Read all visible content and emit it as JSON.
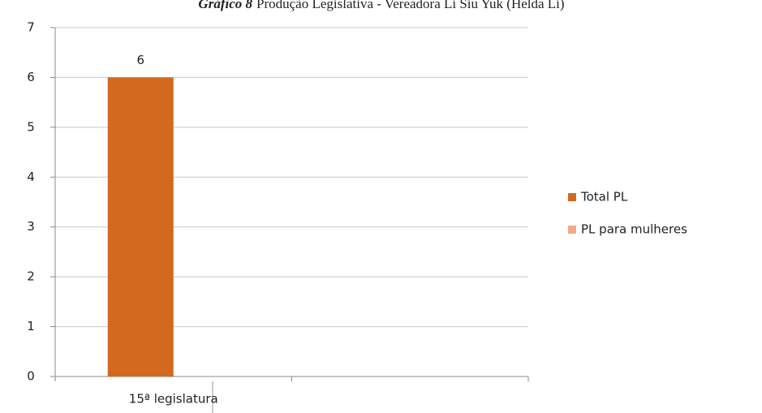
{
  "chart_data": {
    "type": "bar",
    "figure_label": "Gráfico 8",
    "title": "Produção Legislativa - Vereadora Li Siu Yuk (Helda Li)",
    "categories": [
      "15ª legislatura",
      null
    ],
    "series": [
      {
        "name": "Total PL",
        "color": "#d2691e",
        "values": [
          6,
          null
        ],
        "data_labels": true
      },
      {
        "name": "PL para mulheres",
        "color": "#f2a98b",
        "values": [
          0,
          null
        ]
      }
    ],
    "ylim": [
      0,
      7
    ],
    "yticks": [
      0,
      1,
      2,
      3,
      4,
      5,
      6,
      7
    ],
    "grid": true,
    "legend": "right"
  }
}
